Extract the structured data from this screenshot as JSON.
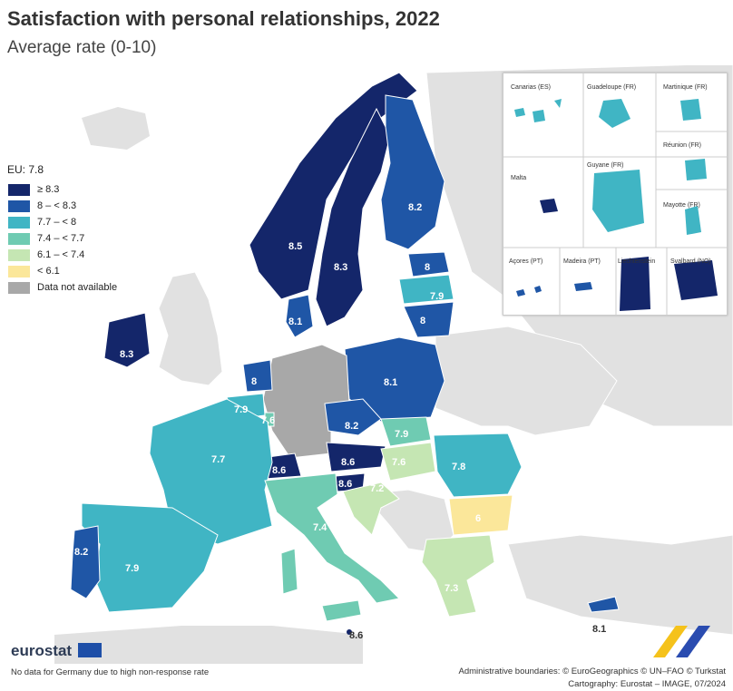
{
  "title": "Satisfaction with personal relationships, 2022",
  "subtitle": "Average rate (0-10)",
  "legend": {
    "eu": "EU: 7.8",
    "items": [
      {
        "label": "≥ 8.3",
        "color": "#14266a"
      },
      {
        "label": "8 – < 8.3",
        "color": "#1f56a6"
      },
      {
        "label": "7.7 – < 8",
        "color": "#40b5c4"
      },
      {
        "label": "7.4 – < 7.7",
        "color": "#6fcbb2"
      },
      {
        "label": "6.1 – < 7.4",
        "color": "#c5e6b3"
      },
      {
        "label": "< 6.1",
        "color": "#fbe79a"
      },
      {
        "label": "Data not available",
        "color": "#a8a8a8"
      }
    ]
  },
  "countries": {
    "norway": "8.5",
    "sweden": "8.3",
    "finland": "8.2",
    "estonia": "8",
    "latvia": "7.9",
    "lithuania": "8",
    "denmark": "8.1",
    "ireland": "8.3",
    "netherlands": "8",
    "belgium": "7.9",
    "luxembourg": "7.6",
    "poland": "8.1",
    "czechia": "8.2",
    "slovakia": "7.9",
    "austria": "8.6",
    "switzerland": "8.6",
    "slovenia": "8.6",
    "hungary": "7.6",
    "croatia": "7.2",
    "romania": "7.8",
    "bulgaria": "6",
    "france": "7.7",
    "spain": "7.9",
    "portugal": "8.2",
    "italy": "7.4",
    "malta": "8.6",
    "greece": "7.3",
    "cyprus": "8.1"
  },
  "insets": {
    "canarias": "Canarias (ES)",
    "guadeloupe": "Guadeloupe (FR)",
    "martinique": "Martinique (FR)",
    "reunion": "Réunion (FR)",
    "malta": "Malta",
    "guyane": "Guyane (FR)",
    "mayotte": "Mayotte (FR)",
    "acores": "Açores (PT)",
    "madeira": "Madeira (PT)",
    "liechtenstein": "Liechtenstein",
    "svalbard": "Svalbard (NO)"
  },
  "logo": "eurostat",
  "note": "No data for Germany due to high non-response rate",
  "credits": {
    "line1": "Administrative boundaries: © EuroGeographics © UN–FAO © Turkstat",
    "line2": "Cartography: Eurostat – IMAGE, 07/2024"
  }
}
